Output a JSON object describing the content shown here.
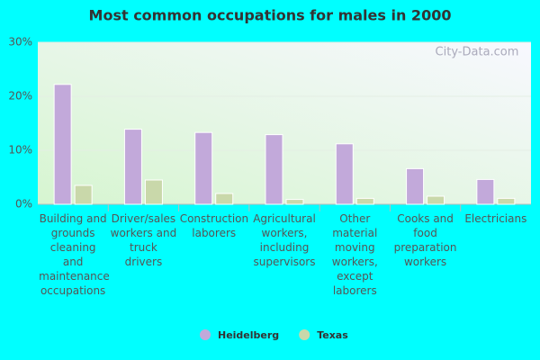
{
  "chart_data": {
    "type": "bar",
    "title": "Most common occupations for males in 2000",
    "categories": [
      "Building and grounds cleaning and maintenance occupations",
      "Driver/sales workers and truck drivers",
      "Construction laborers",
      "Agricultural workers, including supervisors",
      "Other material moving workers, except laborers",
      "Cooks and food preparation workers",
      "Electricians"
    ],
    "series": [
      {
        "name": "Heidelberg",
        "color": "#c2a9da",
        "values": [
          22.2,
          13.9,
          13.3,
          12.9,
          11.2,
          6.6,
          4.6
        ]
      },
      {
        "name": "Texas",
        "color": "#c9d8aa",
        "values": [
          3.5,
          4.5,
          2.0,
          0.9,
          1.1,
          1.5,
          1.1
        ]
      }
    ],
    "ylim": [
      0,
      30
    ],
    "yticks": [
      {
        "value": 0,
        "label": "0%"
      },
      {
        "value": 10,
        "label": "10%"
      },
      {
        "value": 20,
        "label": "20%"
      },
      {
        "value": 30,
        "label": "30%"
      }
    ],
    "grid": true,
    "watermark": "City-Data.com"
  }
}
